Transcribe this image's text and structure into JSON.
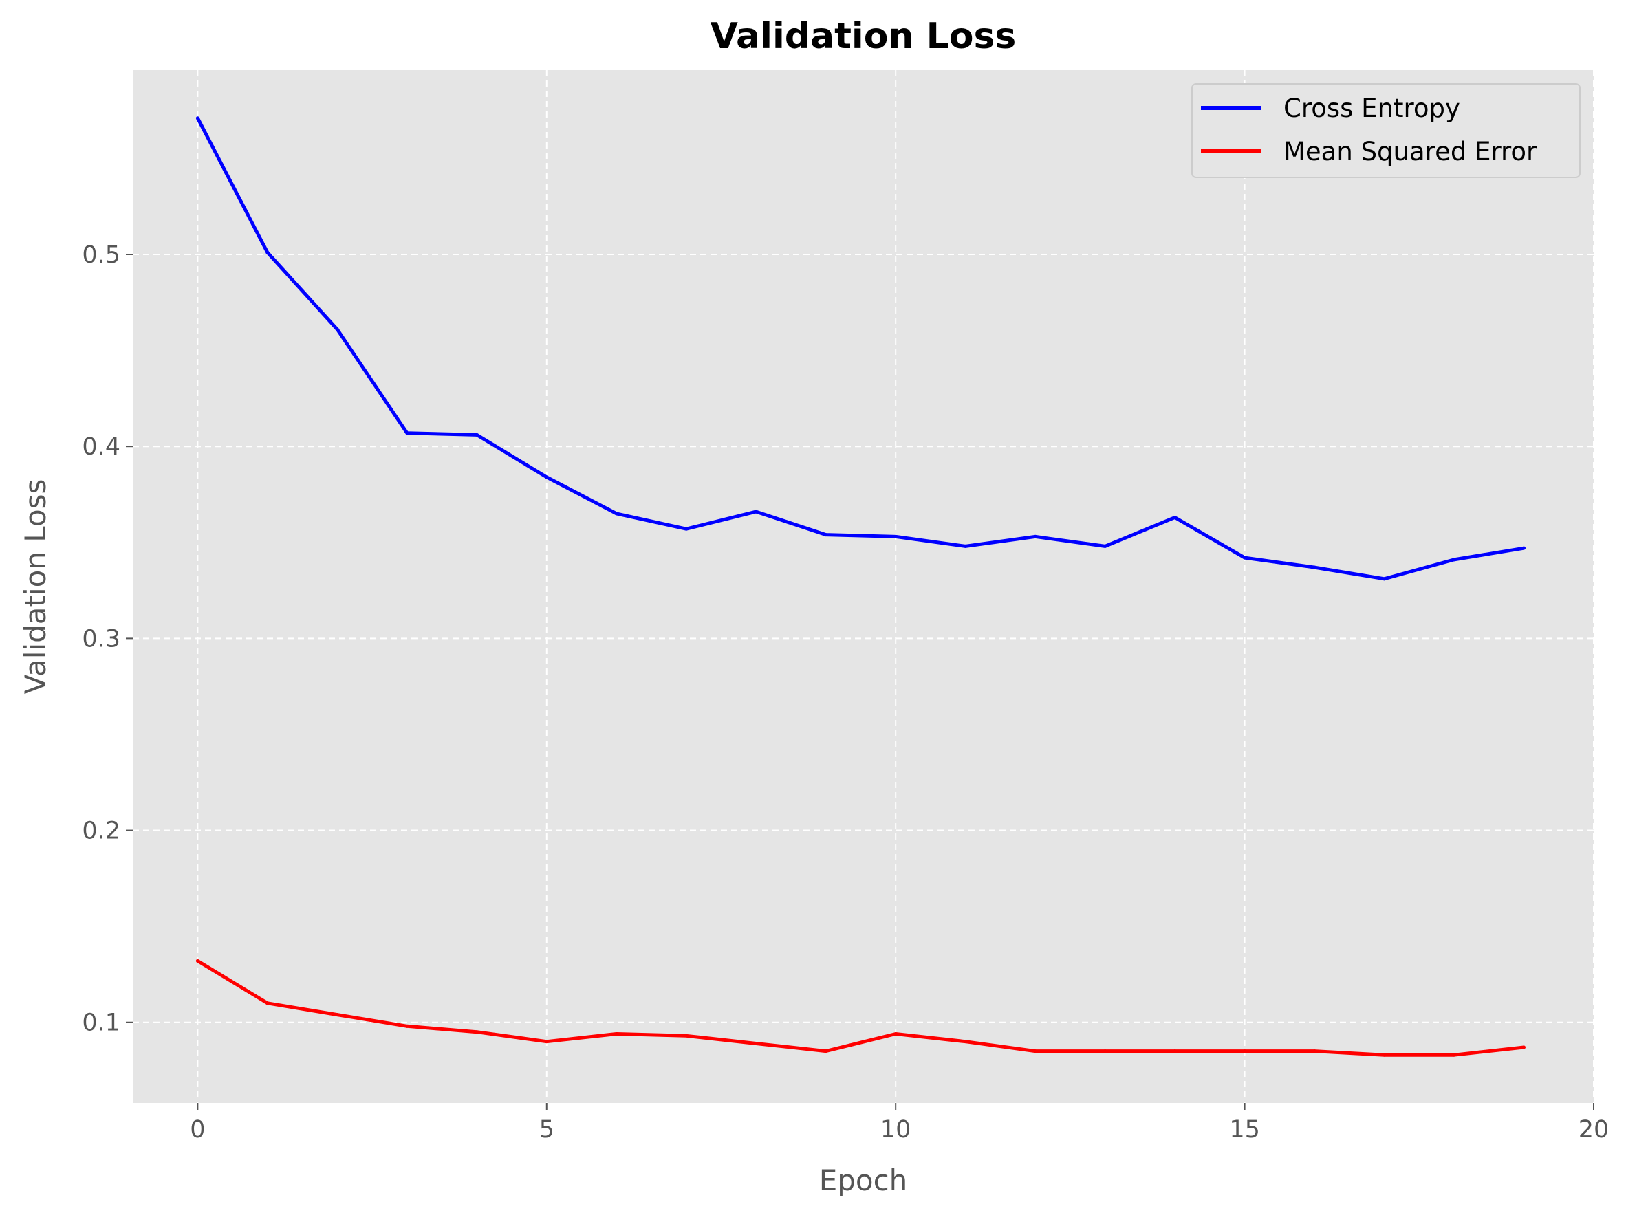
{
  "chart_data": {
    "type": "line",
    "title": "Validation Loss",
    "xlabel": "Epoch",
    "ylabel": "Validation Loss",
    "xlim": [
      -0.93,
      20
    ],
    "ylim": [
      0.058,
      0.596
    ],
    "xticks": [
      0,
      5,
      10,
      15,
      20
    ],
    "yticks": [
      0.1,
      0.2,
      0.3,
      0.4,
      0.5
    ],
    "xtick_labels": [
      "0",
      "5",
      "10",
      "15",
      "20"
    ],
    "ytick_labels": [
      "0.1",
      "0.2",
      "0.3",
      "0.4",
      "0.5"
    ],
    "grid": true,
    "legend_position": "top-right",
    "x": [
      0,
      1,
      2,
      3,
      4,
      5,
      6,
      7,
      8,
      9,
      10,
      11,
      12,
      13,
      14,
      15,
      16,
      17,
      18,
      19
    ],
    "series": [
      {
        "name": "Cross Entropy",
        "color": "#0000ff",
        "values": [
          0.571,
          0.501,
          0.461,
          0.407,
          0.406,
          0.384,
          0.365,
          0.357,
          0.366,
          0.354,
          0.353,
          0.348,
          0.353,
          0.348,
          0.363,
          0.342,
          0.337,
          0.331,
          0.341,
          0.347
        ]
      },
      {
        "name": "Mean Squared Error",
        "color": "#ff0000",
        "values": [
          0.132,
          0.11,
          0.104,
          0.098,
          0.095,
          0.09,
          0.094,
          0.093,
          0.089,
          0.085,
          0.094,
          0.09,
          0.085,
          0.085,
          0.085,
          0.085,
          0.085,
          0.083,
          0.083,
          0.087
        ]
      }
    ]
  },
  "colors": {
    "plot_background": "#e5e5e5",
    "grid": "#ffffff",
    "tick_text": "#555555"
  }
}
